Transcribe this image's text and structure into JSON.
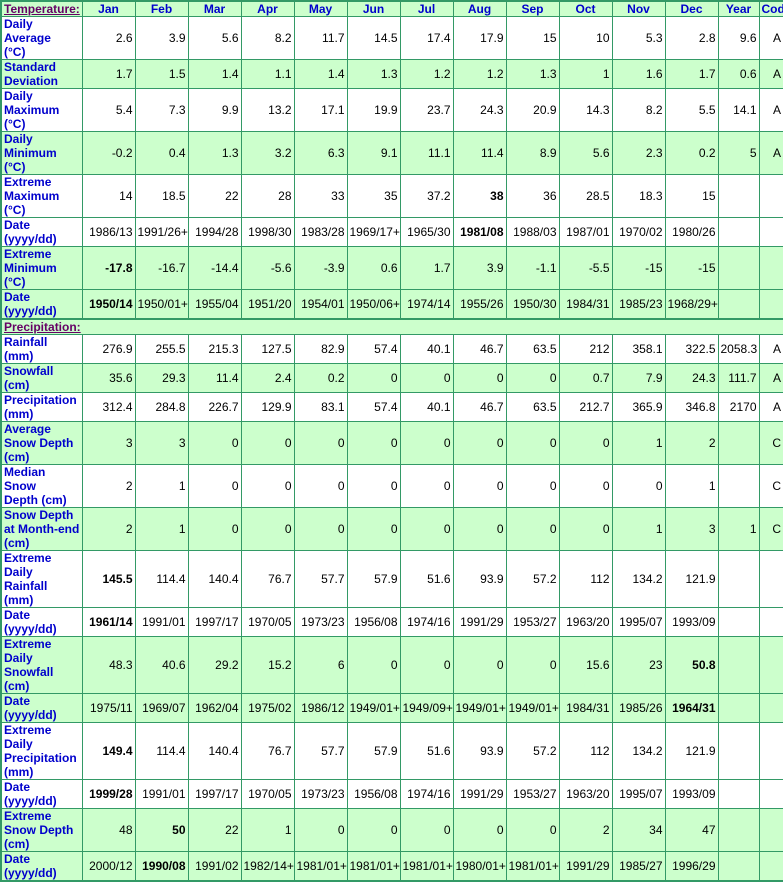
{
  "colors": {
    "cell_green": "#CCFFCC",
    "row_white": "#FFFFFF",
    "border_green": "#339966",
    "label_blue": "#0000CC",
    "section_purple": "#660066",
    "value_black": "#000000"
  },
  "chart_data": {
    "type": "table",
    "columns": [
      "Jan",
      "Feb",
      "Mar",
      "Apr",
      "May",
      "Jun",
      "Jul",
      "Aug",
      "Sep",
      "Oct",
      "Nov",
      "Dec",
      "Year",
      "Code"
    ],
    "sections": [
      {
        "title": "Temperature:",
        "rows": [
          {
            "label": "Daily Average\n(°C)",
            "bg": "white",
            "bold": [],
            "values": [
              "2.6",
              "3.9",
              "5.6",
              "8.2",
              "11.7",
              "14.5",
              "17.4",
              "17.9",
              "15",
              "10",
              "5.3",
              "2.8",
              "9.6",
              "A"
            ]
          },
          {
            "label": "Standard\nDeviation",
            "bg": "green",
            "bold": [],
            "values": [
              "1.7",
              "1.5",
              "1.4",
              "1.1",
              "1.4",
              "1.3",
              "1.2",
              "1.2",
              "1.3",
              "1",
              "1.6",
              "1.7",
              "0.6",
              "A"
            ]
          },
          {
            "label": "Daily\nMaximum\n(°C)",
            "bg": "white",
            "bold": [],
            "values": [
              "5.4",
              "7.3",
              "9.9",
              "13.2",
              "17.1",
              "19.9",
              "23.7",
              "24.3",
              "20.9",
              "14.3",
              "8.2",
              "5.5",
              "14.1",
              "A"
            ]
          },
          {
            "label": "Daily\nMinimum\n(°C)",
            "bg": "green",
            "bold": [],
            "values": [
              "-0.2",
              "0.4",
              "1.3",
              "3.2",
              "6.3",
              "9.1",
              "11.1",
              "11.4",
              "8.9",
              "5.6",
              "2.3",
              "0.2",
              "5",
              "A"
            ]
          },
          {
            "label": "Extreme\nMaximum\n(°C)",
            "bg": "white",
            "bold": [
              7
            ],
            "values": [
              "14",
              "18.5",
              "22",
              "28",
              "33",
              "35",
              "37.2",
              "38",
              "36",
              "28.5",
              "18.3",
              "15",
              "",
              ""
            ]
          },
          {
            "label": "Date\n(yyyy/dd)",
            "bg": "white",
            "bold": [
              7
            ],
            "values": [
              "1986/13",
              "1991/26+",
              "1994/28",
              "1998/30",
              "1983/28",
              "1969/17+",
              "1965/30",
              "1981/08",
              "1988/03",
              "1987/01",
              "1970/02",
              "1980/26",
              "",
              ""
            ]
          },
          {
            "label": "Extreme\nMinimum\n(°C)",
            "bg": "green",
            "bold": [
              0
            ],
            "values": [
              "-17.8",
              "-16.7",
              "-14.4",
              "-5.6",
              "-3.9",
              "0.6",
              "1.7",
              "3.9",
              "-1.1",
              "-5.5",
              "-15",
              "-15",
              "",
              ""
            ]
          },
          {
            "label": "Date\n(yyyy/dd)",
            "bg": "green",
            "bold": [
              0
            ],
            "values": [
              "1950/14",
              "1950/01+",
              "1955/04",
              "1951/20",
              "1954/01",
              "1950/06+",
              "1974/14",
              "1955/26",
              "1950/30",
              "1984/31",
              "1985/23",
              "1968/29+",
              "",
              ""
            ]
          }
        ]
      },
      {
        "title": "Precipitation:",
        "rows": [
          {
            "label": "Rainfall (mm)",
            "bg": "white",
            "bold": [],
            "values": [
              "276.9",
              "255.5",
              "215.3",
              "127.5",
              "82.9",
              "57.4",
              "40.1",
              "46.7",
              "63.5",
              "212",
              "358.1",
              "322.5",
              "2058.3",
              "A"
            ]
          },
          {
            "label": "Snowfall\n(cm)",
            "bg": "green",
            "bold": [],
            "values": [
              "35.6",
              "29.3",
              "11.4",
              "2.4",
              "0.2",
              "0",
              "0",
              "0",
              "0",
              "0.7",
              "7.9",
              "24.3",
              "111.7",
              "A"
            ]
          },
          {
            "label": "Precipitation\n(mm)",
            "bg": "white",
            "bold": [],
            "values": [
              "312.4",
              "284.8",
              "226.7",
              "129.9",
              "83.1",
              "57.4",
              "40.1",
              "46.7",
              "63.5",
              "212.7",
              "365.9",
              "346.8",
              "2170",
              "A"
            ]
          },
          {
            "label": "Average\nSnow Depth\n(cm)",
            "bg": "green",
            "bold": [],
            "values": [
              "3",
              "3",
              "0",
              "0",
              "0",
              "0",
              "0",
              "0",
              "0",
              "0",
              "1",
              "2",
              "",
              "C"
            ]
          },
          {
            "label": "Median Snow\nDepth (cm)",
            "bg": "white",
            "bold": [],
            "values": [
              "2",
              "1",
              "0",
              "0",
              "0",
              "0",
              "0",
              "0",
              "0",
              "0",
              "0",
              "1",
              "",
              "C"
            ]
          },
          {
            "label": "Snow Depth\nat Month-end\n(cm)",
            "bg": "green",
            "bold": [],
            "values": [
              "2",
              "1",
              "0",
              "0",
              "0",
              "0",
              "0",
              "0",
              "0",
              "0",
              "1",
              "3",
              "1",
              "C"
            ]
          },
          {
            "label": "Extreme Daily\nRainfall (mm)",
            "bg": "white",
            "bold": [
              0
            ],
            "values": [
              "145.5",
              "114.4",
              "140.4",
              "76.7",
              "57.7",
              "57.9",
              "51.6",
              "93.9",
              "57.2",
              "112",
              "134.2",
              "121.9",
              "",
              ""
            ]
          },
          {
            "label": "Date\n(yyyy/dd)",
            "bg": "white",
            "bold": [
              0
            ],
            "values": [
              "1961/14",
              "1991/01",
              "1997/17",
              "1970/05",
              "1973/23",
              "1956/08",
              "1974/16",
              "1991/29",
              "1953/27",
              "1963/20",
              "1995/07",
              "1993/09",
              "",
              ""
            ]
          },
          {
            "label": "Extreme Daily\nSnowfall\n(cm)",
            "bg": "green",
            "bold": [
              11
            ],
            "values": [
              "48.3",
              "40.6",
              "29.2",
              "15.2",
              "6",
              "0",
              "0",
              "0",
              "0",
              "15.6",
              "23",
              "50.8",
              "",
              ""
            ]
          },
          {
            "label": "Date\n(yyyy/dd)",
            "bg": "green",
            "bold": [
              11
            ],
            "values": [
              "1975/11",
              "1969/07",
              "1962/04",
              "1975/02",
              "1986/12",
              "1949/01+",
              "1949/09+",
              "1949/01+",
              "1949/01+",
              "1984/31",
              "1985/26",
              "1964/31",
              "",
              ""
            ]
          },
          {
            "label": "Extreme Daily\nPrecipitation\n(mm)",
            "bg": "white",
            "bold": [
              0
            ],
            "values": [
              "149.4",
              "114.4",
              "140.4",
              "76.7",
              "57.7",
              "57.9",
              "51.6",
              "93.9",
              "57.2",
              "112",
              "134.2",
              "121.9",
              "",
              ""
            ]
          },
          {
            "label": "Date\n(yyyy/dd)",
            "bg": "white",
            "bold": [
              0
            ],
            "values": [
              "1999/28",
              "1991/01",
              "1997/17",
              "1970/05",
              "1973/23",
              "1956/08",
              "1974/16",
              "1991/29",
              "1953/27",
              "1963/20",
              "1995/07",
              "1993/09",
              "",
              ""
            ]
          },
          {
            "label": "Extreme\nSnow Depth\n(cm)",
            "bg": "green",
            "bold": [
              1
            ],
            "values": [
              "48",
              "50",
              "22",
              "1",
              "0",
              "0",
              "0",
              "0",
              "0",
              "2",
              "34",
              "47",
              "",
              ""
            ]
          },
          {
            "label": "Date\n(yyyy/dd)",
            "bg": "green",
            "bold": [
              1
            ],
            "values": [
              "2000/12",
              "1990/08",
              "1991/02",
              "1982/14+",
              "1981/01+",
              "1981/01+",
              "1981/01+",
              "1980/01+",
              "1981/01+",
              "1991/29",
              "1985/27",
              "1996/29",
              "",
              ""
            ]
          }
        ]
      }
    ]
  }
}
